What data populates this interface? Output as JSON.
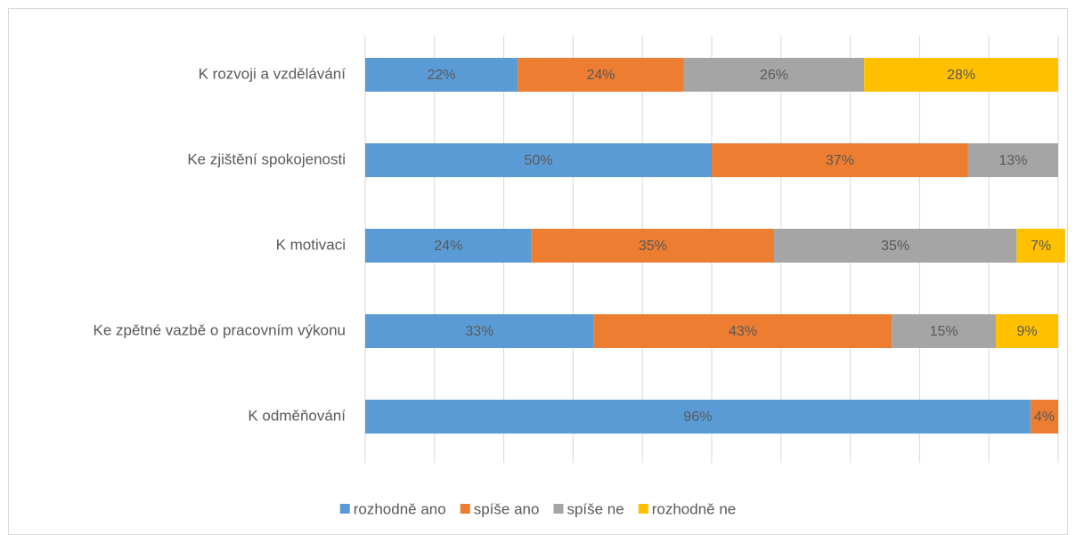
{
  "chart_data": {
    "type": "stacked-bar",
    "categories": [
      "K rozvoji a vzdělávání",
      "Ke zjištění spokojenosti",
      "K motivaci",
      "Ke zpětné vazbě o pracovním výkonu",
      "K odměňování"
    ],
    "series": [
      {
        "name": "rozhodně ano",
        "color": "#5b9bd5",
        "values": [
          22,
          50,
          24,
          33,
          96
        ],
        "value_labels": [
          "22%",
          "50%",
          "24%",
          "33%",
          "96%"
        ]
      },
      {
        "name": "spíše ano",
        "color": "#ed7d31",
        "values": [
          24,
          37,
          35,
          43,
          4
        ],
        "value_labels": [
          "24%",
          "37%",
          "35%",
          "43%",
          "4%"
        ]
      },
      {
        "name": "spíše ne",
        "color": "#a5a5a5",
        "values": [
          26,
          13,
          35,
          15,
          null
        ],
        "value_labels": [
          "26%",
          "13%",
          "35%",
          "15%",
          null
        ]
      },
      {
        "name": "rozhodně ne",
        "color": "#ffc000",
        "values": [
          28,
          null,
          7,
          9,
          null
        ],
        "value_labels": [
          "28%",
          null,
          "7%",
          "9%",
          null
        ]
      }
    ],
    "xlim": [
      0,
      100
    ],
    "xticks": [
      0,
      10,
      20,
      30,
      40,
      50,
      60,
      70,
      80,
      90,
      100
    ],
    "grid": true,
    "legend": "bottom"
  }
}
